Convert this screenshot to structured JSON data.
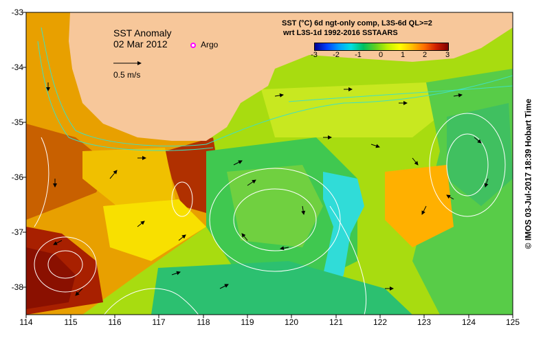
{
  "map": {
    "title": "SST Anomaly",
    "date": "02 Mar 2012",
    "argo_label": "Argo",
    "velocity_label": "0.5 m/s",
    "legend_title_1": "SST (°C) 6d ngt-only comp, L3S-6d QL>=2",
    "legend_title_2": "wrt L3S-1d 1992-2016 SSTAARS",
    "colorbar_ticks": [
      "-3",
      "-2",
      "-1",
      "0",
      "1",
      "2",
      "3"
    ],
    "side_note": "© IMOS 03-Jul-2017 18:39 Hobart Time",
    "x_ticks": [
      "114",
      "115",
      "116",
      "117",
      "118",
      "119",
      "120",
      "121",
      "122",
      "123",
      "124",
      "125"
    ],
    "y_ticks": [
      "-33",
      "-34",
      "-35",
      "-36",
      "-37",
      "-38"
    ],
    "colors": {
      "land": "#f7c79a",
      "anomaly_high": "#9a1500",
      "anomaly_mid": "#e8a000",
      "anomaly_neutral": "#b8e000",
      "anomaly_low": "#28c060",
      "anomaly_cold": "#30e0e0",
      "contour": "#ffffff",
      "coastline_contour": "#40e0c0"
    }
  }
}
